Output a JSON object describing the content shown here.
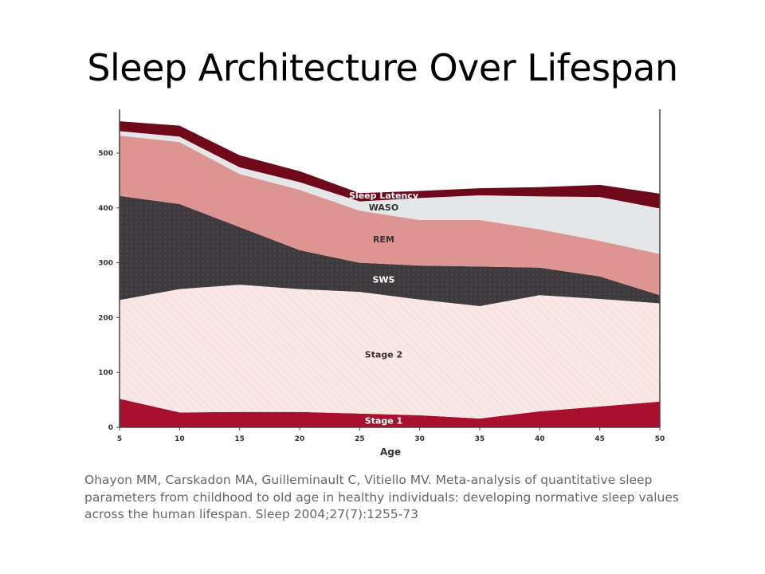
{
  "slide": {
    "title": "Sleep Architecture Over Lifespan",
    "citation": "Ohayon MM, Carskadon MA, Guilleminault C, Vitiello MV. Meta-analysis of quantitative sleep parameters from childhood to old age in healthy individuals: developing normative sleep values across the human lifespan. Sleep 2004;27(7):1255-73"
  },
  "chart_data": {
    "type": "area",
    "stacked": true,
    "xlabel": "Age",
    "ylabel": "",
    "xlim": [
      5,
      50
    ],
    "ylim": [
      0,
      580
    ],
    "x_ticks": [
      5,
      10,
      15,
      20,
      25,
      30,
      35,
      40,
      45,
      50
    ],
    "y_ticks": [
      0,
      100,
      200,
      300,
      400,
      500
    ],
    "grid": false,
    "legend": "none (labels placed inside areas)",
    "x": [
      5,
      10,
      15,
      20,
      25,
      30,
      35,
      40,
      45,
      50
    ],
    "series": [
      {
        "name": "Stage 1",
        "color": "#a8102e",
        "label_color": "#ffffff",
        "values": [
          52,
          27,
          28,
          28,
          25,
          22,
          16,
          29,
          38,
          47
        ]
      },
      {
        "name": "Stage 2",
        "color": "#f9e8e6",
        "label_color": "#333333",
        "values": [
          180,
          225,
          232,
          224,
          222,
          211,
          205,
          212,
          196,
          179
        ]
      },
      {
        "name": "SWS",
        "color": "#3e3a3d",
        "label_color": "#ffffff",
        "values": [
          190,
          155,
          105,
          71,
          53,
          62,
          72,
          50,
          41,
          15
        ]
      },
      {
        "name": "REM",
        "color": "#dc9590",
        "label_color": "#333333",
        "values": [
          110,
          113,
          97,
          110,
          95,
          83,
          85,
          70,
          65,
          75
        ]
      },
      {
        "name": "WASO",
        "color": "#e5e6e8",
        "label_color": "#333333",
        "values": [
          8,
          10,
          12,
          14,
          17,
          40,
          45,
          60,
          80,
          83
        ]
      },
      {
        "name": "Sleep Latency",
        "color": "#6e0a1c",
        "label_color": "#ffffff",
        "values": [
          18,
          20,
          22,
          20,
          15,
          13,
          13,
          17,
          22,
          27
        ]
      }
    ]
  }
}
